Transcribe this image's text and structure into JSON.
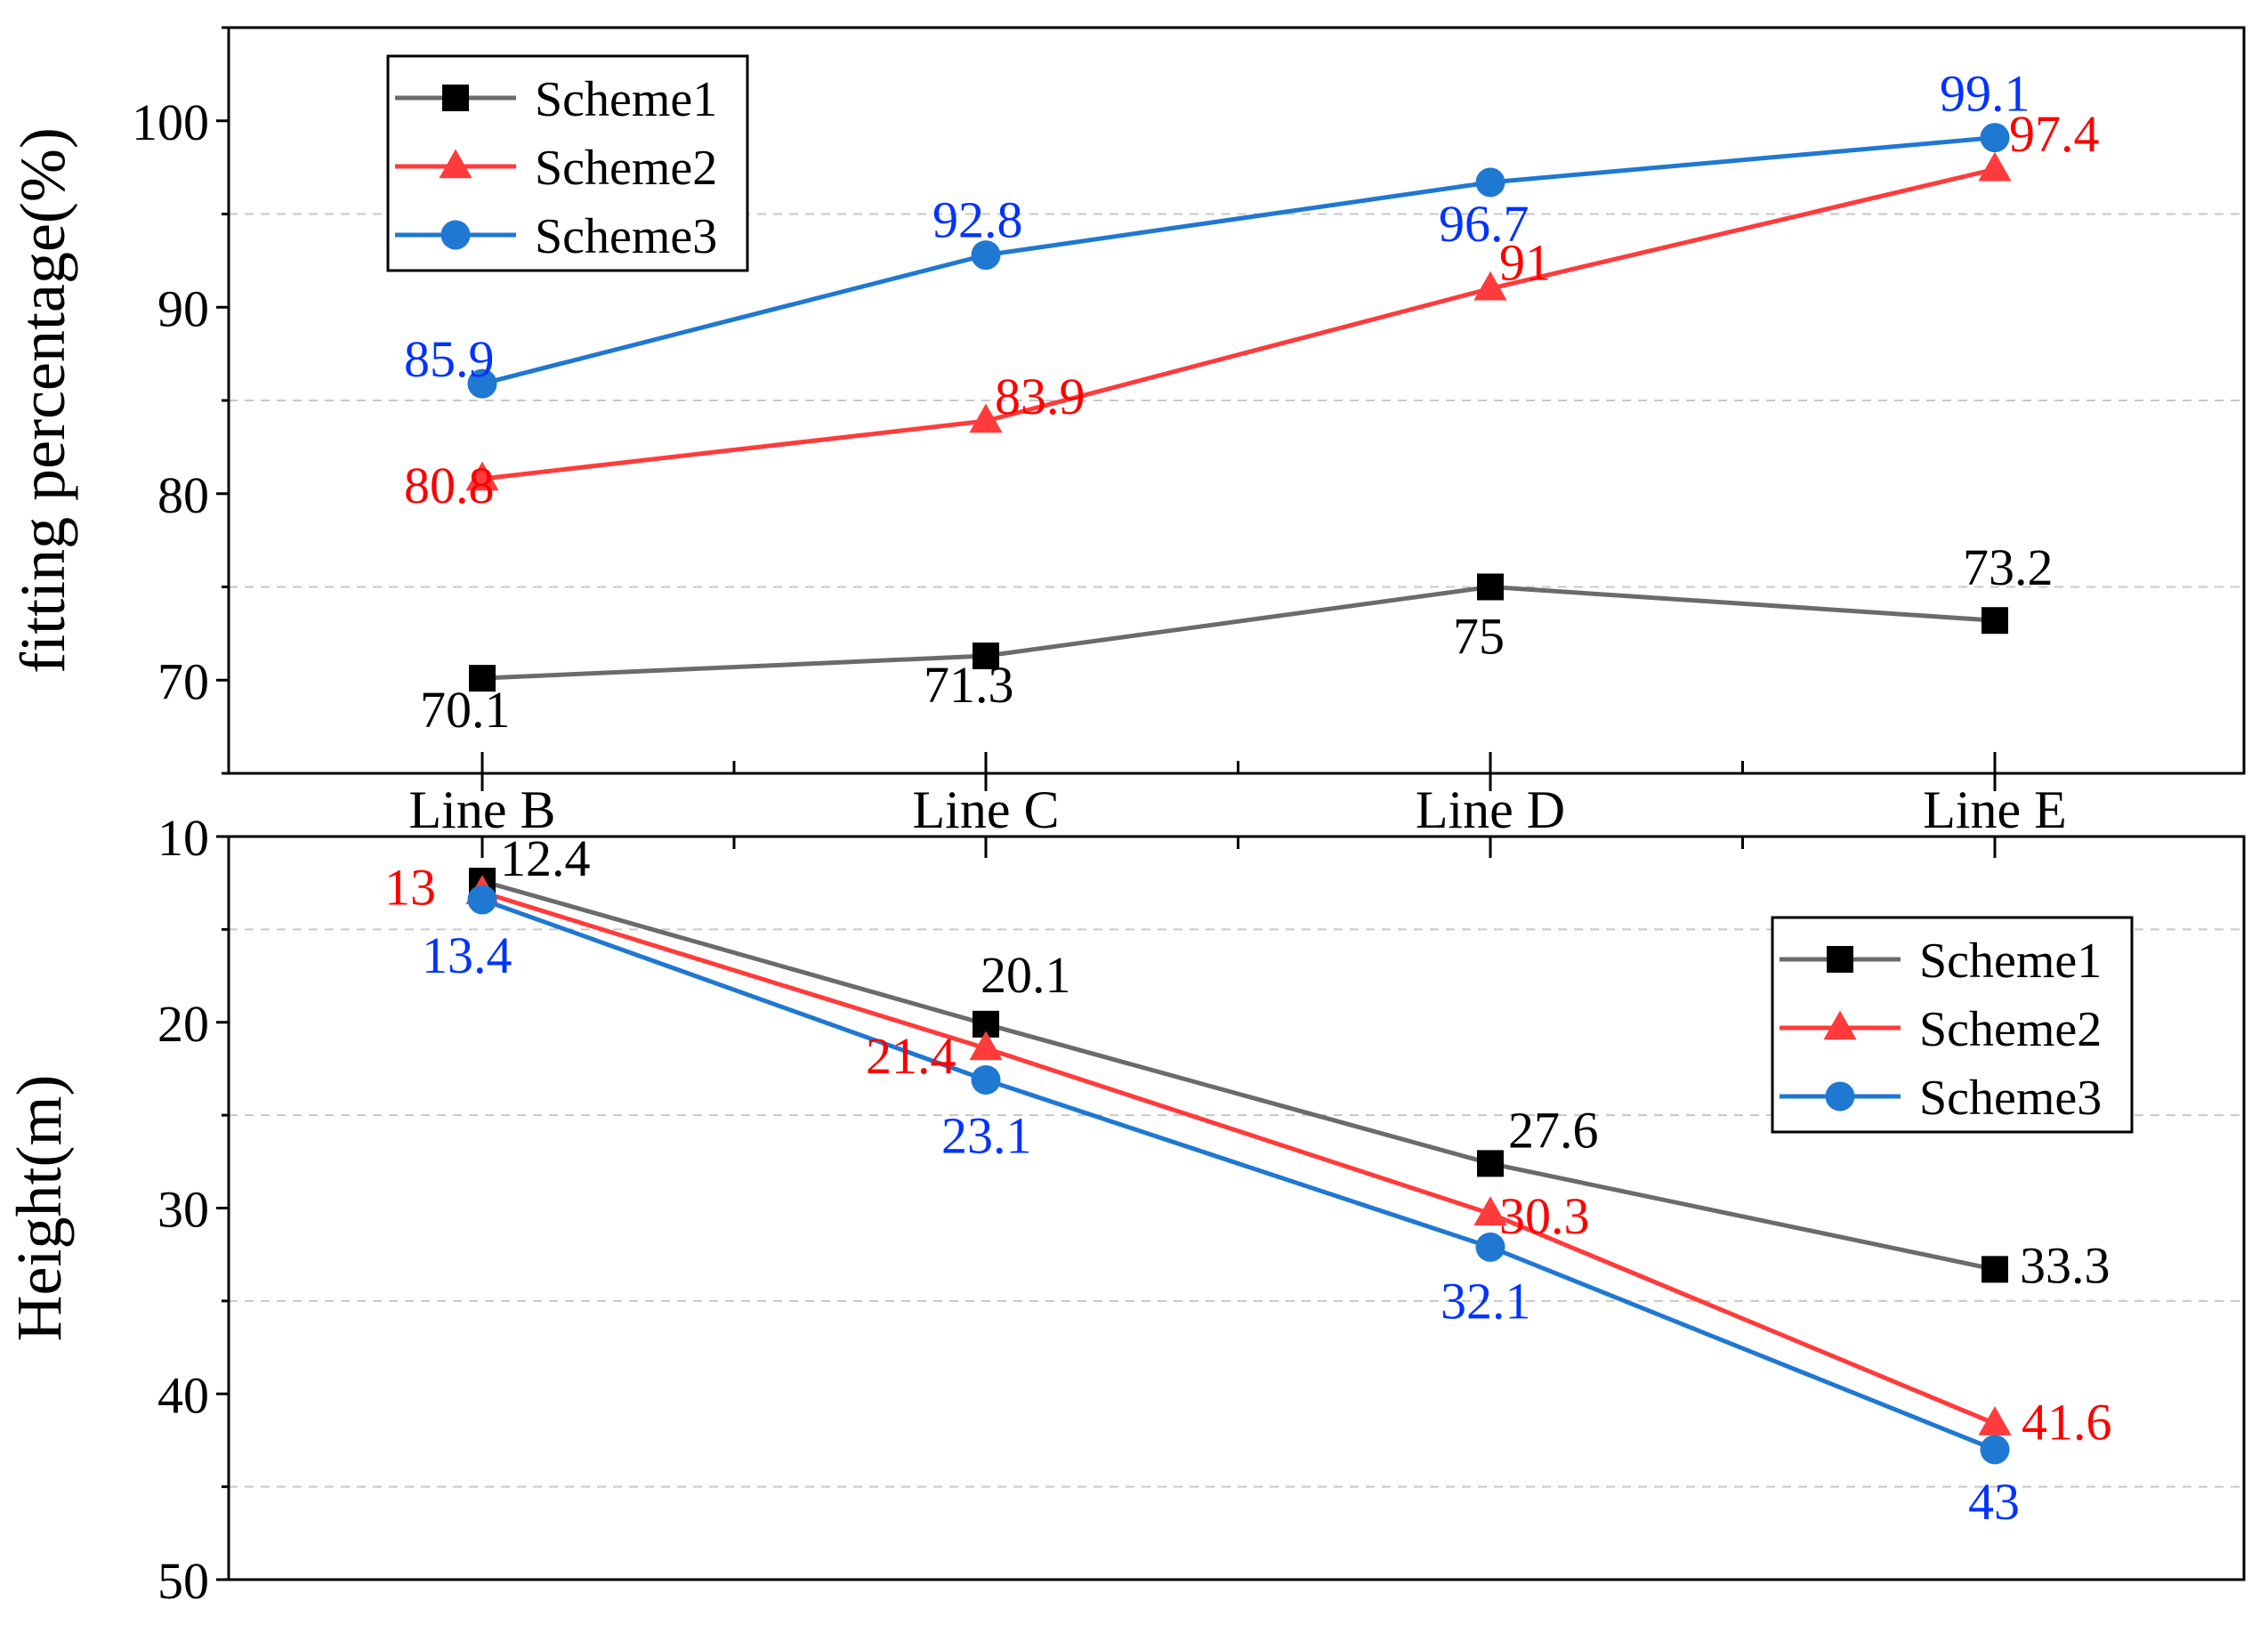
{
  "colors": {
    "scheme1": "#6b6b6b",
    "scheme1_marker": "#000000",
    "scheme2": "#ff3b3b",
    "scheme2_label": "#ff0000",
    "scheme3": "#1f78d1",
    "scheme3_label": "#0033ff",
    "grid": "#c8c8c8",
    "axis": "#000000"
  },
  "chart_data": [
    {
      "type": "line",
      "title": "",
      "xlabel": "",
      "ylabel": "fitting percentage(%)",
      "categories": [
        "Line B",
        "Line C",
        "Line D",
        "Line E"
      ],
      "ylim": [
        65,
        105
      ],
      "yticks": [
        70,
        80,
        90,
        100
      ],
      "y_inverted": false,
      "grid": "horizontal dashed at minor ticks",
      "legend_position": "top-left",
      "series": [
        {
          "name": "Scheme1",
          "key": "scheme1",
          "marker": "square",
          "values": [
            70.1,
            71.3,
            75,
            73.2
          ],
          "labels": [
            "70.1",
            "71.3",
            "75",
            "73.2"
          ]
        },
        {
          "name": "Scheme2",
          "key": "scheme2",
          "marker": "triangle",
          "values": [
            80.8,
            83.9,
            91,
            97.4
          ],
          "labels": [
            "80.8",
            "83.9",
            "91",
            "97.4"
          ]
        },
        {
          "name": "Scheme3",
          "key": "scheme3",
          "marker": "circle",
          "values": [
            85.9,
            92.8,
            96.7,
            99.1
          ],
          "labels": [
            "85.9",
            "92.8",
            "96.7",
            "99.1"
          ]
        }
      ]
    },
    {
      "type": "line",
      "title": "",
      "xlabel": "",
      "ylabel": "Height(m)",
      "categories": [
        "Line B",
        "Line C",
        "Line D",
        "Line E"
      ],
      "ylim": [
        10,
        50
      ],
      "yticks": [
        10,
        20,
        30,
        40,
        50
      ],
      "y_inverted": true,
      "grid": "horizontal dashed at minor ticks",
      "legend_position": "top-right",
      "series": [
        {
          "name": "Scheme1",
          "key": "scheme1",
          "marker": "square",
          "values": [
            12.4,
            20.1,
            27.6,
            33.3
          ],
          "labels": [
            "12.4",
            "20.1",
            "27.6",
            "33.3"
          ]
        },
        {
          "name": "Scheme2",
          "key": "scheme2",
          "marker": "triangle",
          "values": [
            13,
            21.4,
            30.3,
            41.6
          ],
          "labels": [
            "13",
            "21.4",
            "30.3",
            "41.6"
          ]
        },
        {
          "name": "Scheme3",
          "key": "scheme3",
          "marker": "circle",
          "values": [
            13.4,
            23.1,
            32.1,
            43
          ],
          "labels": [
            "13.4",
            "23.1",
            "32.1",
            "43"
          ]
        }
      ]
    }
  ]
}
